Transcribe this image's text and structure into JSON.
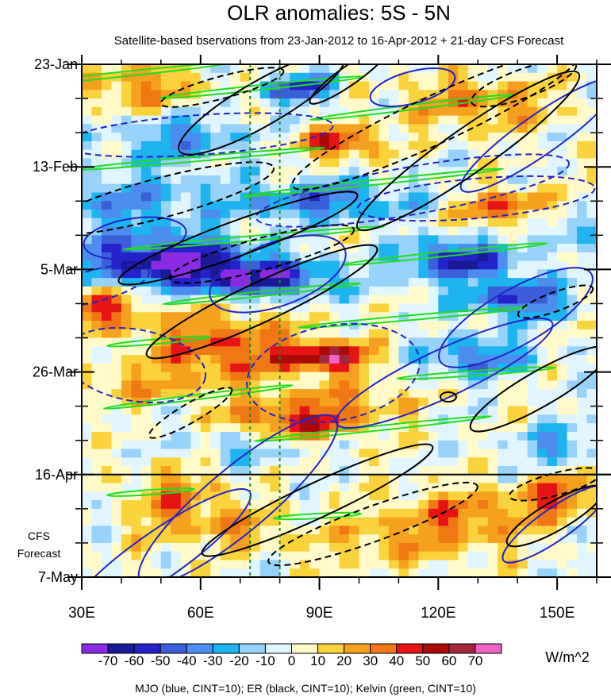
{
  "chart_data": {
    "type": "heatmap",
    "title": "OLR anomalies: 5S - 5N",
    "subtitle": "Satellite-based bservations from 23-Jan-2012 to 16-Apr-2012 + 21-day CFS Forecast",
    "x_ticks": [
      {
        "value": 30,
        "label": "30E"
      },
      {
        "value": 60,
        "label": "60E"
      },
      {
        "value": 90,
        "label": "90E"
      },
      {
        "value": 120,
        "label": "120E"
      },
      {
        "value": 150,
        "label": "150E"
      }
    ],
    "xlim": [
      30,
      160
    ],
    "y_ticks": [
      {
        "day": 0,
        "label": "23-Jan"
      },
      {
        "day": 21,
        "label": "13-Feb"
      },
      {
        "day": 42,
        "label": "5-Mar"
      },
      {
        "day": 63,
        "label": "26-Mar"
      },
      {
        "day": 84,
        "label": "16-Apr"
      },
      {
        "day": 105,
        "label": "7-May"
      }
    ],
    "ylim_days": [
      0,
      105
    ],
    "forecast_start_day": 84,
    "forecast_label_1": "CFS",
    "forecast_label_2": "Forecast",
    "reference_lines_lon": [
      72.5,
      80
    ],
    "colorbar": {
      "labels": [
        "-70",
        "-60",
        "-50",
        "-40",
        "-30",
        "-20",
        "-10",
        "0",
        "10",
        "20",
        "30",
        "40",
        "50",
        "60",
        "70"
      ],
      "colors": [
        "#8a2be2",
        "#1a1a96",
        "#2323c8",
        "#3a5fd9",
        "#4b8ef0",
        "#1eb4f0",
        "#96d2fa",
        "#e1f5ff",
        "#fffac8",
        "#fad23c",
        "#f5a01e",
        "#f07814",
        "#e61414",
        "#aa0a0a",
        "#a0283c",
        "#f064c8"
      ],
      "unit": "W/m^2"
    },
    "footer": "MJO (blue, CINT=10); ER (black, CINT=10); Kelvin (green, CINT=10)",
    "colors": {
      "mjo": "#2323c8",
      "er": "#000000",
      "kelvin": "#22dd22",
      "ref_line": "#228b22"
    }
  }
}
